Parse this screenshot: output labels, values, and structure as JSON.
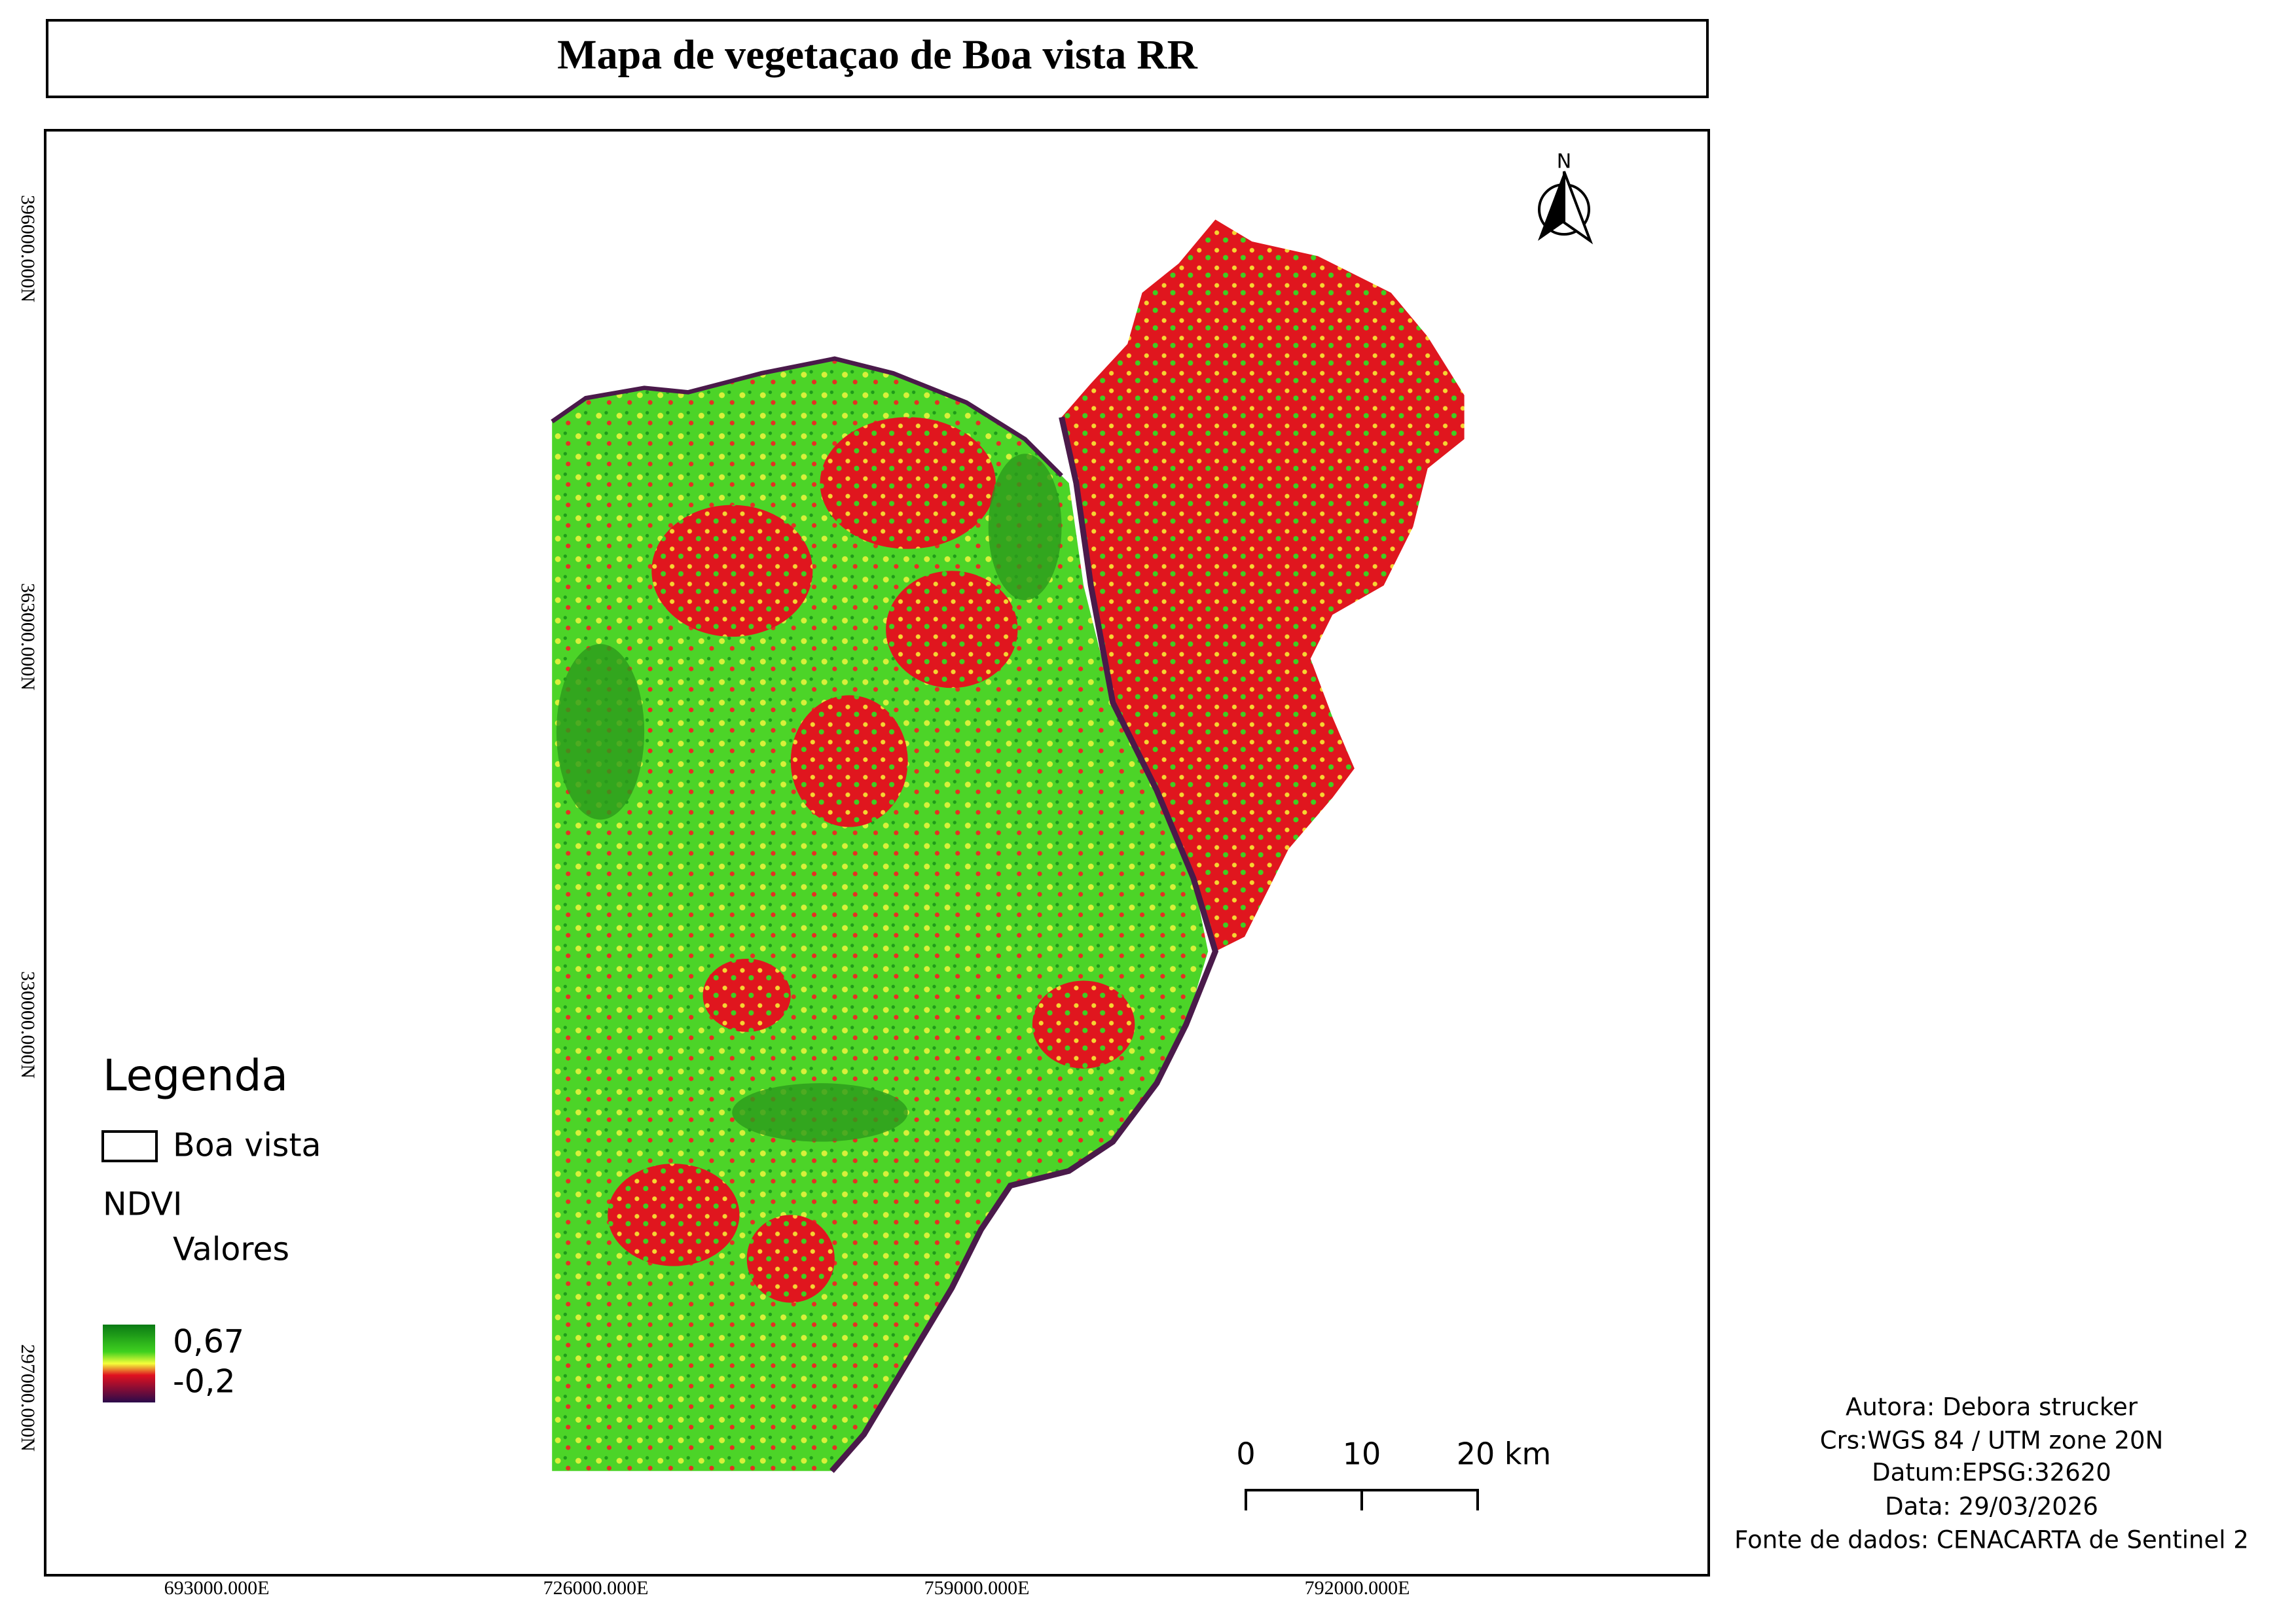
{
  "title": "Mapa de vegetaçao de Boa vista RR",
  "map": {
    "north_label": "N",
    "y_coords": [
      "396000.000N",
      "363000.000N",
      "330000.000N",
      "297000.000N"
    ],
    "x_coords": [
      "693000.000E",
      "726000.000E",
      "759000.000E",
      "792000.000E"
    ]
  },
  "legend": {
    "title": "Legenda",
    "boundary_label": "Boa vista",
    "layer": "NDVI",
    "sublabel": "Valores",
    "max_label": "0,67",
    "min_label": "-0,2"
  },
  "scale_bar": {
    "labels": [
      "0",
      "10",
      "20 km"
    ]
  },
  "credits": [
    "Autora: Debora strucker",
    "Crs:WGS 84 / UTM zone 20N",
    "Datum:EPSG:32620",
    "Data: 29/03/2026",
    "Fonte de dados: CENACARTA de Sentinel 2"
  ]
}
